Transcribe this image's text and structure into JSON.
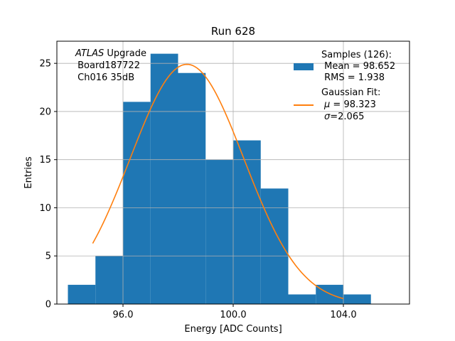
{
  "chart_data": {
    "type": "bar",
    "title": "Run 628",
    "xlabel": "Energy [ADC Counts]",
    "ylabel": "Entries",
    "xlim": [
      93.6,
      106.4
    ],
    "ylim": [
      0,
      27.3
    ],
    "grid": true,
    "bin_width": 1.0,
    "bin_left_edges": [
      94,
      95,
      96,
      97,
      98,
      99,
      100,
      101,
      102,
      103,
      104
    ],
    "values": [
      2,
      5,
      21,
      26,
      24,
      15,
      17,
      12,
      1,
      2,
      1
    ],
    "bar_color": "#1f77b4",
    "xticks": [
      96.0,
      100.0,
      104.0
    ],
    "xtick_labels": [
      "96.0",
      "100.0",
      "104.0"
    ],
    "yticks": [
      0,
      5,
      10,
      15,
      20,
      25
    ],
    "ytick_labels": [
      "0",
      "5",
      "10",
      "15",
      "20",
      "25"
    ],
    "fit": {
      "type": "gaussian",
      "mu": 98.323,
      "sigma": 2.065,
      "amplitude": 24.9,
      "x_range": [
        94.9,
        104.0
      ],
      "color": "#ff7f0e"
    },
    "annotation": {
      "italic_word": "ATLAS",
      "line1_rest": " Upgrade",
      "line2": " Board187722",
      "line3": " Ch016 35dB"
    },
    "legend": {
      "position": "top-right",
      "samples_title": "Samples (126):",
      "samples_mean": " Mean = 98.652",
      "samples_rms": " RMS = 1.938",
      "fit_title": "Gaussian Fit:",
      "fit_mu_symbol": "μ",
      "fit_mu_rest": " = 98.323",
      "fit_sigma_symbol": "σ",
      "fit_sigma_rest": "=2.065"
    }
  }
}
